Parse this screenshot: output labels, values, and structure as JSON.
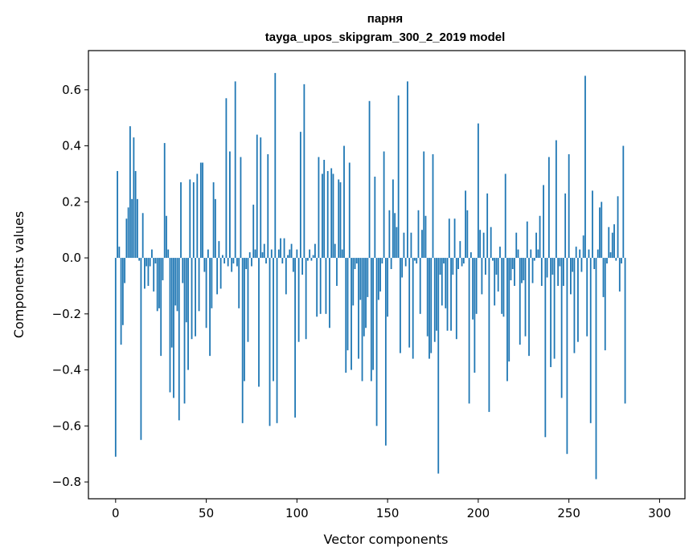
{
  "chart_data": {
    "type": "bar",
    "title_line1": "парня",
    "title_line2": "tayga_upos_skipgram_300_2_2019 model",
    "xlabel": "Vector components",
    "ylabel": "Components values",
    "xlim": [
      -15,
      314
    ],
    "ylim": [
      -0.86,
      0.74
    ],
    "xticks": [
      0,
      50,
      100,
      150,
      200,
      250,
      300
    ],
    "yticks": [
      -0.8,
      -0.6,
      -0.4,
      -0.2,
      0.0,
      0.2,
      0.4,
      0.6
    ],
    "ytick_labels": [
      "−0.8",
      "−0.6",
      "−0.4",
      "−0.2",
      "0.0",
      "0.2",
      "0.4",
      "0.6"
    ],
    "bar_color": "#1f77b4",
    "values": [
      -0.71,
      0.31,
      0.04,
      -0.31,
      -0.24,
      -0.09,
      0.14,
      0.18,
      0.47,
      0.21,
      0.43,
      0.31,
      0.21,
      -0.01,
      -0.65,
      0.16,
      -0.11,
      -0.03,
      -0.1,
      -0.03,
      0.03,
      -0.12,
      -0.02,
      -0.19,
      -0.18,
      -0.35,
      -0.08,
      0.41,
      0.15,
      0.03,
      -0.48,
      -0.32,
      -0.5,
      -0.17,
      -0.19,
      -0.58,
      0.27,
      -0.09,
      -0.52,
      -0.23,
      -0.4,
      0.28,
      -0.29,
      0.27,
      -0.28,
      0.3,
      -0.19,
      0.34,
      0.34,
      -0.05,
      -0.25,
      0.03,
      -0.35,
      -0.18,
      0.27,
      0.21,
      -0.13,
      0.06,
      -0.11,
      0.01,
      -0.02,
      0.57,
      -0.03,
      0.38,
      -0.05,
      -0.02,
      0.63,
      -0.03,
      -0.18,
      0.36,
      -0.59,
      -0.44,
      -0.04,
      -0.3,
      0.02,
      -0.03,
      0.19,
      0.03,
      0.44,
      -0.46,
      0.43,
      0.02,
      0.05,
      -0.02,
      0.37,
      -0.6,
      0.03,
      -0.44,
      0.66,
      -0.59,
      0.03,
      0.07,
      -0.02,
      0.07,
      -0.13,
      0.01,
      0.03,
      0.05,
      -0.05,
      -0.57,
      0.03,
      -0.3,
      0.45,
      -0.06,
      0.62,
      -0.29,
      -0.01,
      0.03,
      -0.01,
      0.01,
      0.05,
      -0.21,
      0.36,
      -0.2,
      0.3,
      0.35,
      -0.2,
      0.31,
      -0.25,
      0.32,
      0.3,
      0.05,
      -0.1,
      0.28,
      0.27,
      0.03,
      0.4,
      -0.41,
      -0.33,
      0.34,
      -0.4,
      -0.17,
      -0.04,
      -0.02,
      -0.36,
      -0.15,
      -0.44,
      -0.28,
      -0.25,
      -0.14,
      0.56,
      -0.44,
      -0.4,
      0.29,
      -0.6,
      -0.15,
      -0.12,
      -0.02,
      0.38,
      -0.67,
      -0.21,
      0.17,
      -0.04,
      0.28,
      0.16,
      0.11,
      0.58,
      -0.34,
      -0.07,
      0.09,
      -0.03,
      0.63,
      -0.32,
      0.09,
      -0.36,
      -0.01,
      -0.02,
      0.17,
      -0.2,
      0.1,
      0.38,
      0.15,
      -0.28,
      -0.36,
      -0.34,
      0.37,
      -0.3,
      -0.26,
      -0.77,
      -0.06,
      -0.17,
      -0.02,
      -0.18,
      -0.26,
      0.14,
      -0.26,
      -0.06,
      0.14,
      -0.29,
      -0.04,
      0.06,
      -0.03,
      -0.02,
      0.24,
      0.17,
      -0.52,
      0.02,
      -0.22,
      -0.41,
      -0.2,
      0.48,
      0.1,
      -0.13,
      0.09,
      -0.06,
      0.23,
      -0.55,
      0.11,
      -0.01,
      -0.17,
      -0.06,
      -0.12,
      0.04,
      -0.2,
      -0.21,
      0.3,
      -0.44,
      -0.37,
      -0.08,
      -0.04,
      -0.1,
      0.09,
      0.03,
      -0.31,
      -0.09,
      -0.08,
      -0.28,
      0.13,
      -0.35,
      0.03,
      -0.09,
      -0.01,
      0.09,
      0.03,
      0.15,
      -0.1,
      0.26,
      -0.64,
      -0.07,
      0.36,
      -0.39,
      -0.06,
      -0.36,
      0.42,
      -0.1,
      -0.03,
      -0.5,
      -0.1,
      0.23,
      -0.7,
      0.37,
      -0.13,
      -0.05,
      -0.34,
      0.04,
      -0.3,
      0.03,
      -0.05,
      0.08,
      0.65,
      -0.28,
      0.03,
      -0.59,
      0.24,
      -0.04,
      -0.79,
      0.03,
      0.18,
      0.2,
      -0.14,
      -0.33,
      -0.02,
      0.11,
      0.02,
      0.09,
      0.12,
      -0.01,
      0.22,
      -0.12,
      -0.02,
      0.4,
      -0.52
    ]
  }
}
